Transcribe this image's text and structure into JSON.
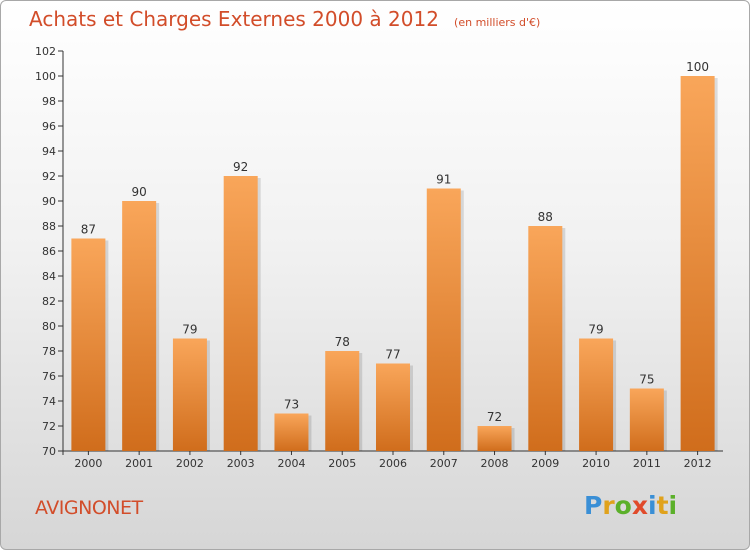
{
  "header": {
    "title": "Achats et Charges Externes 2000 à 2012",
    "unit": "(en milliers d'€)"
  },
  "footer": {
    "city": "AVIGNONET",
    "logo": {
      "letters": [
        "P",
        "r",
        "o",
        "x",
        "i",
        "t",
        "i"
      ],
      "colors": [
        "#3a8fd6",
        "#e0a21c",
        "#5bb02a",
        "#e04a2a",
        "#3a8fd6",
        "#e0a21c",
        "#5bb02a"
      ]
    }
  },
  "colors": {
    "bar_light": "#f9a65a",
    "bar_dark": "#d06d1c",
    "text": "#d24d2a",
    "axis": "#333333"
  },
  "chart_data": {
    "type": "bar",
    "title": "Achats et Charges Externes 2000 à 2012",
    "categories": [
      "2000",
      "2001",
      "2002",
      "2003",
      "2004",
      "2005",
      "2006",
      "2007",
      "2008",
      "2009",
      "2010",
      "2011",
      "2012"
    ],
    "values": [
      87,
      90,
      79,
      92,
      73,
      78,
      77,
      91,
      72,
      88,
      79,
      75,
      100
    ],
    "ylim": [
      70,
      102
    ],
    "yticks": [
      70,
      72,
      74,
      76,
      78,
      80,
      82,
      84,
      86,
      88,
      90,
      92,
      94,
      96,
      98,
      100,
      102
    ],
    "grid": false,
    "data_labels": true
  }
}
